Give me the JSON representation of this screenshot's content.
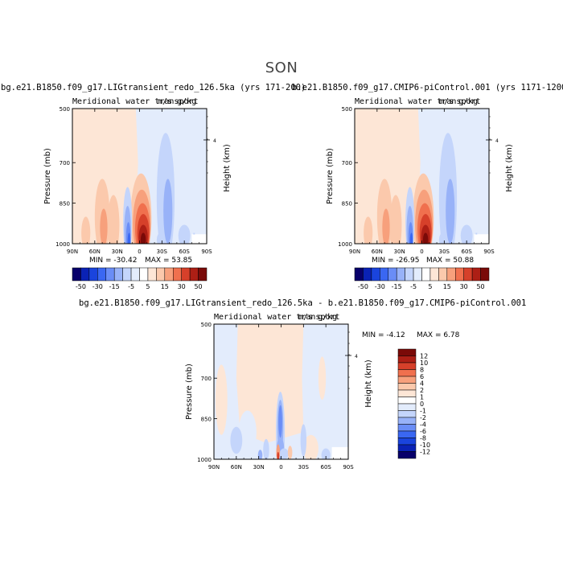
{
  "season": "SON",
  "var_title": "Meridional water transport",
  "units": "m/s g/kg",
  "colors": {
    "palette": [
      "#08006b",
      "#0a22b5",
      "#1a44dd",
      "#3a67f2",
      "#6a8df6",
      "#98b2f8",
      "#c4d5fb",
      "#e3ecfc",
      "#ffffff",
      "#fde6d6",
      "#fbc9ac",
      "#f7a07c",
      "#f0704e",
      "#d6402a",
      "#ad1f15",
      "#7a0a08"
    ],
    "diff_palette": [
      "#08006b",
      "#0a22b5",
      "#1a44dd",
      "#3a67f2",
      "#6a8df6",
      "#98b2f8",
      "#c4d5fb",
      "#e3ecfc",
      "#ffffff",
      "#fde6d6",
      "#fbc9ac",
      "#f7a07c",
      "#f0704e",
      "#d6402a",
      "#ad1f15",
      "#7a0a08"
    ]
  },
  "chart_data": [
    {
      "type": "heatmap",
      "title": "bg.e21.B1850.f09_g17.LIGtransient_redo_126.5ka (yrs 171-200)",
      "subtitle": "Meridional water transport",
      "units": "m/s g/kg",
      "xlabel": "",
      "ylabel": "Pressure (mb)",
      "right_label": "Height (km)",
      "x_ticks": [
        "90N",
        "60N",
        "30N",
        "0",
        "30S",
        "60S",
        "90S"
      ],
      "y_ticks": [
        "500",
        "700",
        "850",
        "1000"
      ],
      "right_ticks": [
        "4"
      ],
      "xlim": [
        90,
        -90
      ],
      "ylim": [
        1000,
        500
      ],
      "min_text": "MIN = -30.42",
      "max_text": "MAX =  53.85",
      "min": -30.42,
      "max": 53.85,
      "colorbar_labels": [
        "-50",
        "-30",
        "-15",
        "-5",
        "5",
        "15",
        "30",
        "50"
      ]
    },
    {
      "type": "heatmap",
      "title": "b.e21.B1850.f09_g17.CMIP6-piControl.001 (yrs 1171-1200)",
      "subtitle": "Meridional water transport",
      "units": "m/s g/kg",
      "xlabel": "",
      "ylabel": "Pressure (mb)",
      "right_label": "Height (km)",
      "x_ticks": [
        "90N",
        "60N",
        "30N",
        "0",
        "30S",
        "60S",
        "90S"
      ],
      "y_ticks": [
        "500",
        "700",
        "850",
        "1000"
      ],
      "right_ticks": [
        "4"
      ],
      "xlim": [
        90,
        -90
      ],
      "ylim": [
        1000,
        500
      ],
      "min_text": "MIN = -26.95",
      "max_text": "MAX =  50.88",
      "min": -26.95,
      "max": 50.88,
      "colorbar_labels": [
        "-50",
        "-30",
        "-15",
        "-5",
        "5",
        "15",
        "30",
        "50"
      ]
    },
    {
      "type": "heatmap",
      "title": "bg.e21.B1850.f09_g17.LIGtransient_redo_126.5ka - b.e21.B1850.f09_g17.CMIP6-piControl.001",
      "subtitle": "Meridional water transport",
      "units": "m/s g/kg",
      "xlabel": "",
      "ylabel": "Pressure (mb)",
      "right_label": "Height (km)",
      "x_ticks": [
        "90N",
        "60N",
        "30N",
        "0",
        "30S",
        "60S",
        "90S"
      ],
      "y_ticks": [
        "500",
        "700",
        "850",
        "1000"
      ],
      "right_ticks": [
        "4"
      ],
      "xlim": [
        90,
        -90
      ],
      "ylim": [
        1000,
        500
      ],
      "min_text": "MIN =  -4.12",
      "max_text": "MAX =   6.78",
      "min": -4.12,
      "max": 6.78,
      "colorbar_labels": [
        "12",
        "10",
        "8",
        "6",
        "4",
        "2",
        "1",
        "0",
        "-1",
        "-2",
        "-4",
        "-6",
        "-8",
        "-10",
        "-12"
      ]
    }
  ]
}
